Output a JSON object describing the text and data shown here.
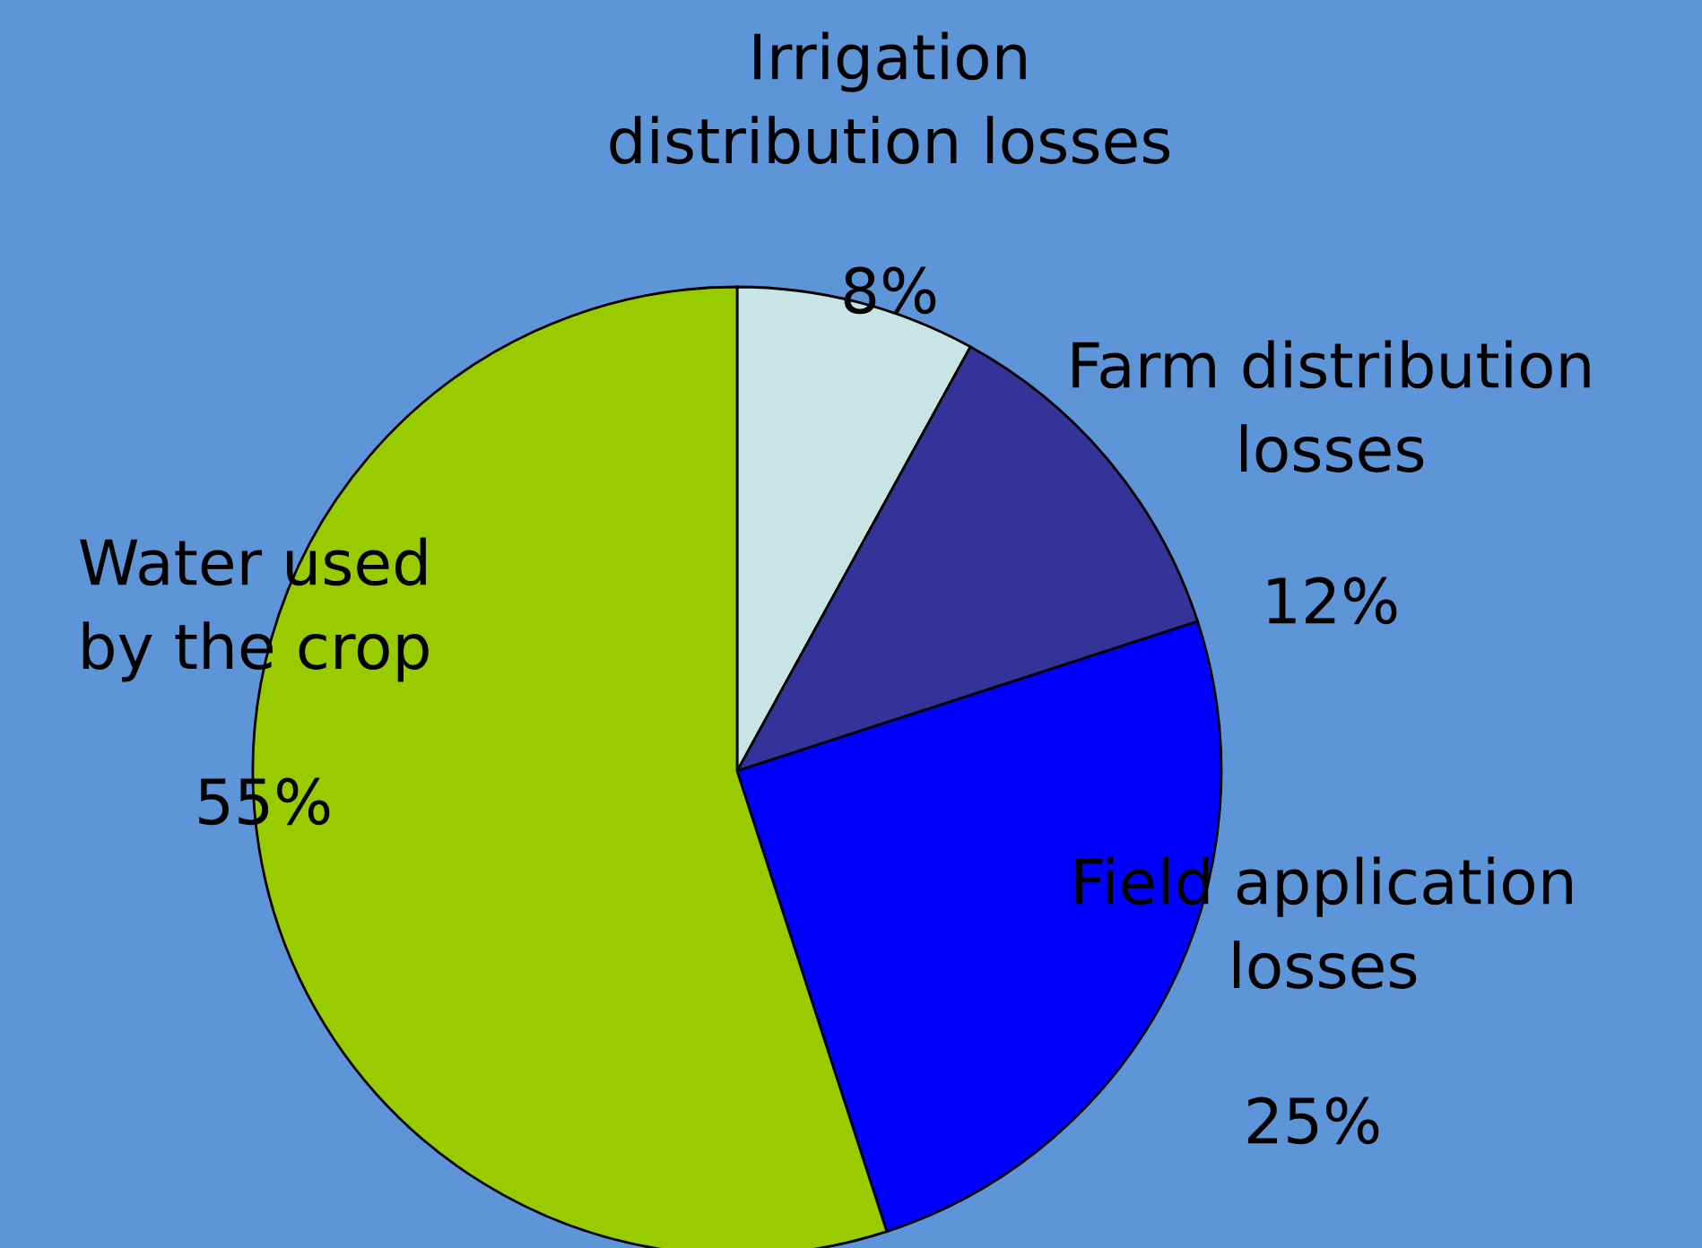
{
  "chart_data": {
    "type": "pie",
    "categories": [
      "Irrigation\ndistribution losses",
      "Farm distribution\nlosses",
      "Field application\nlosses",
      "Water used\nby the crop"
    ],
    "values": [
      8,
      12,
      25,
      55
    ],
    "value_labels": [
      "8%",
      "12%",
      "25%",
      "55%"
    ],
    "colors": [
      "#c8e4e4",
      "#333399",
      "#0000ff",
      "#99cc00"
    ],
    "legend": false
  }
}
